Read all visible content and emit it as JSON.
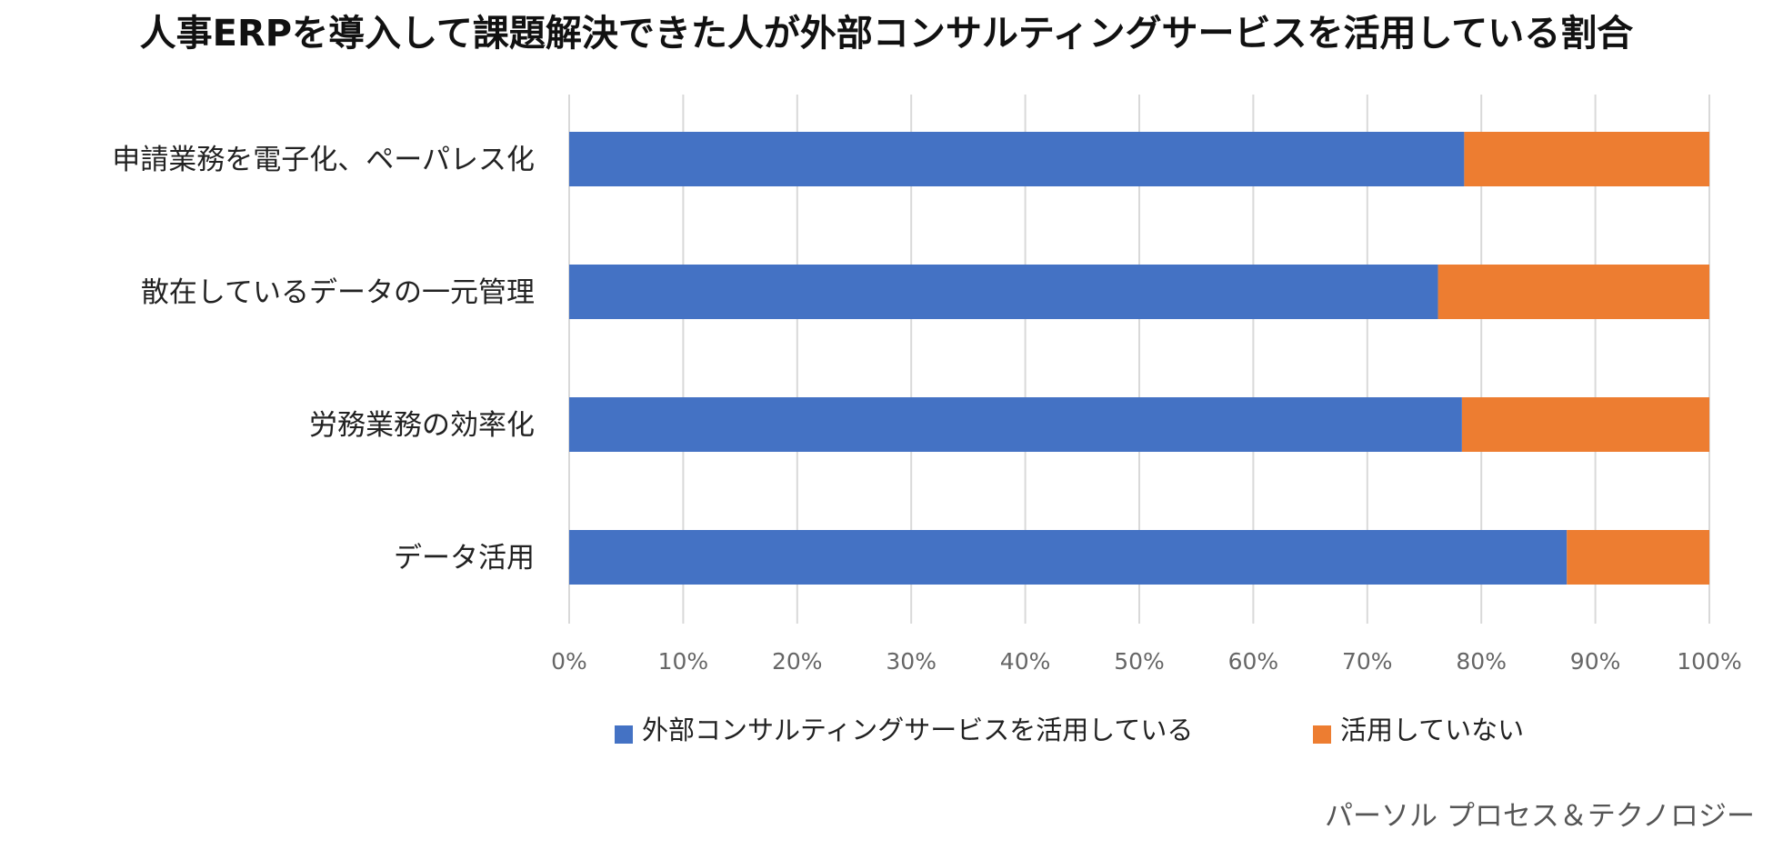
{
  "chart_data": {
    "type": "bar",
    "orientation": "horizontal",
    "stacked": "percent",
    "title": "人事ERPを導入して課題解決できた人が外部コンサルティングサービスを活用している割合",
    "categories": [
      "申請業務を電子化、ペーパレス化",
      "散在しているデータの一元管理",
      "労務業務の効率化",
      "データ活用"
    ],
    "series": [
      {
        "name": "外部コンサルティングサービスを活用している",
        "color": "#4472C4",
        "values": [
          78.5,
          76.2,
          78.3,
          87.5
        ]
      },
      {
        "name": "活用していない",
        "color": "#ED7D31",
        "values": [
          21.5,
          23.8,
          21.7,
          12.5
        ]
      }
    ],
    "xlim": [
      0,
      100
    ],
    "xticks": [
      0,
      10,
      20,
      30,
      40,
      50,
      60,
      70,
      80,
      90,
      100
    ],
    "tick_labels": [
      "0%",
      "10%",
      "20%",
      "30%",
      "40%",
      "50%",
      "60%",
      "70%",
      "80%",
      "90%",
      "100%"
    ],
    "grid": true,
    "legend_position": "bottom"
  },
  "source": "パーソル プロセス＆テクノロジー"
}
